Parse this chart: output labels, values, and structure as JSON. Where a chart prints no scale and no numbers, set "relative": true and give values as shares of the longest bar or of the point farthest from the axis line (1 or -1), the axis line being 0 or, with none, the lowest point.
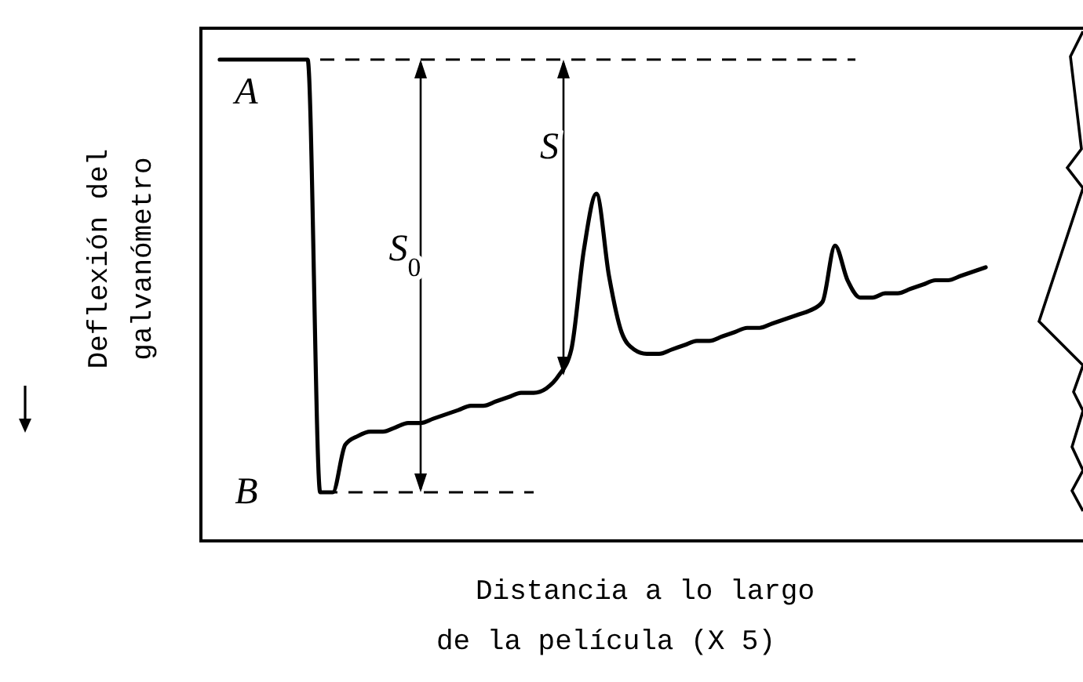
{
  "chart_data": {
    "type": "line",
    "relative": true,
    "xlabel": "Distancia a lo largo\nde la película (X 5)",
    "ylabel": "Deflexión del\ngalvanómetro",
    "categories": [
      null,
      null,
      null,
      null,
      null,
      null,
      null,
      null,
      null,
      null,
      null,
      null,
      null,
      null,
      null,
      null,
      null,
      null,
      null,
      null,
      null,
      null,
      null,
      null,
      null,
      null,
      null,
      null,
      null,
      null,
      null,
      null,
      null,
      null,
      null,
      null,
      null,
      null,
      null,
      null,
      null,
      null,
      null,
      null,
      null,
      null,
      null,
      null,
      null,
      null,
      null,
      null,
      null,
      null,
      null,
      null,
      null,
      null,
      null,
      null,
      null,
      null
    ],
    "series": [
      {
        "color": "#000000",
        "values": [
          1,
          1,
          1,
          1,
          1,
          1,
          1,
          1,
          0,
          0,
          0.11,
          0.13,
          0.14,
          0.14,
          0.15,
          0.16,
          0.16,
          0.17,
          0.18,
          0.19,
          0.2,
          0.2,
          0.21,
          0.22,
          0.23,
          0.23,
          0.24,
          0.27,
          0.33,
          0.56,
          0.69,
          0.5,
          0.37,
          0.33,
          0.32,
          0.32,
          0.33,
          0.34,
          0.35,
          0.35,
          0.36,
          0.37,
          0.38,
          0.38,
          0.39,
          0.4,
          0.41,
          0.42,
          0.44,
          0.57,
          0.49,
          0.45,
          0.45,
          0.46,
          0.46,
          0.47,
          0.48,
          0.49,
          0.49,
          0.5,
          0.51,
          0.52
        ]
      }
    ],
    "ref_lines": [
      {
        "axis": "y",
        "value": 1,
        "line_style": "dashed",
        "color": "#000000"
      },
      {
        "axis": "y",
        "value": 0,
        "line_style": "dashed",
        "color": "#000000"
      }
    ],
    "annotations": [
      "A",
      "B",
      "S",
      "S$_{0}$"
    ],
    "marker": "none",
    "line_style": "solid",
    "grid": false
  }
}
